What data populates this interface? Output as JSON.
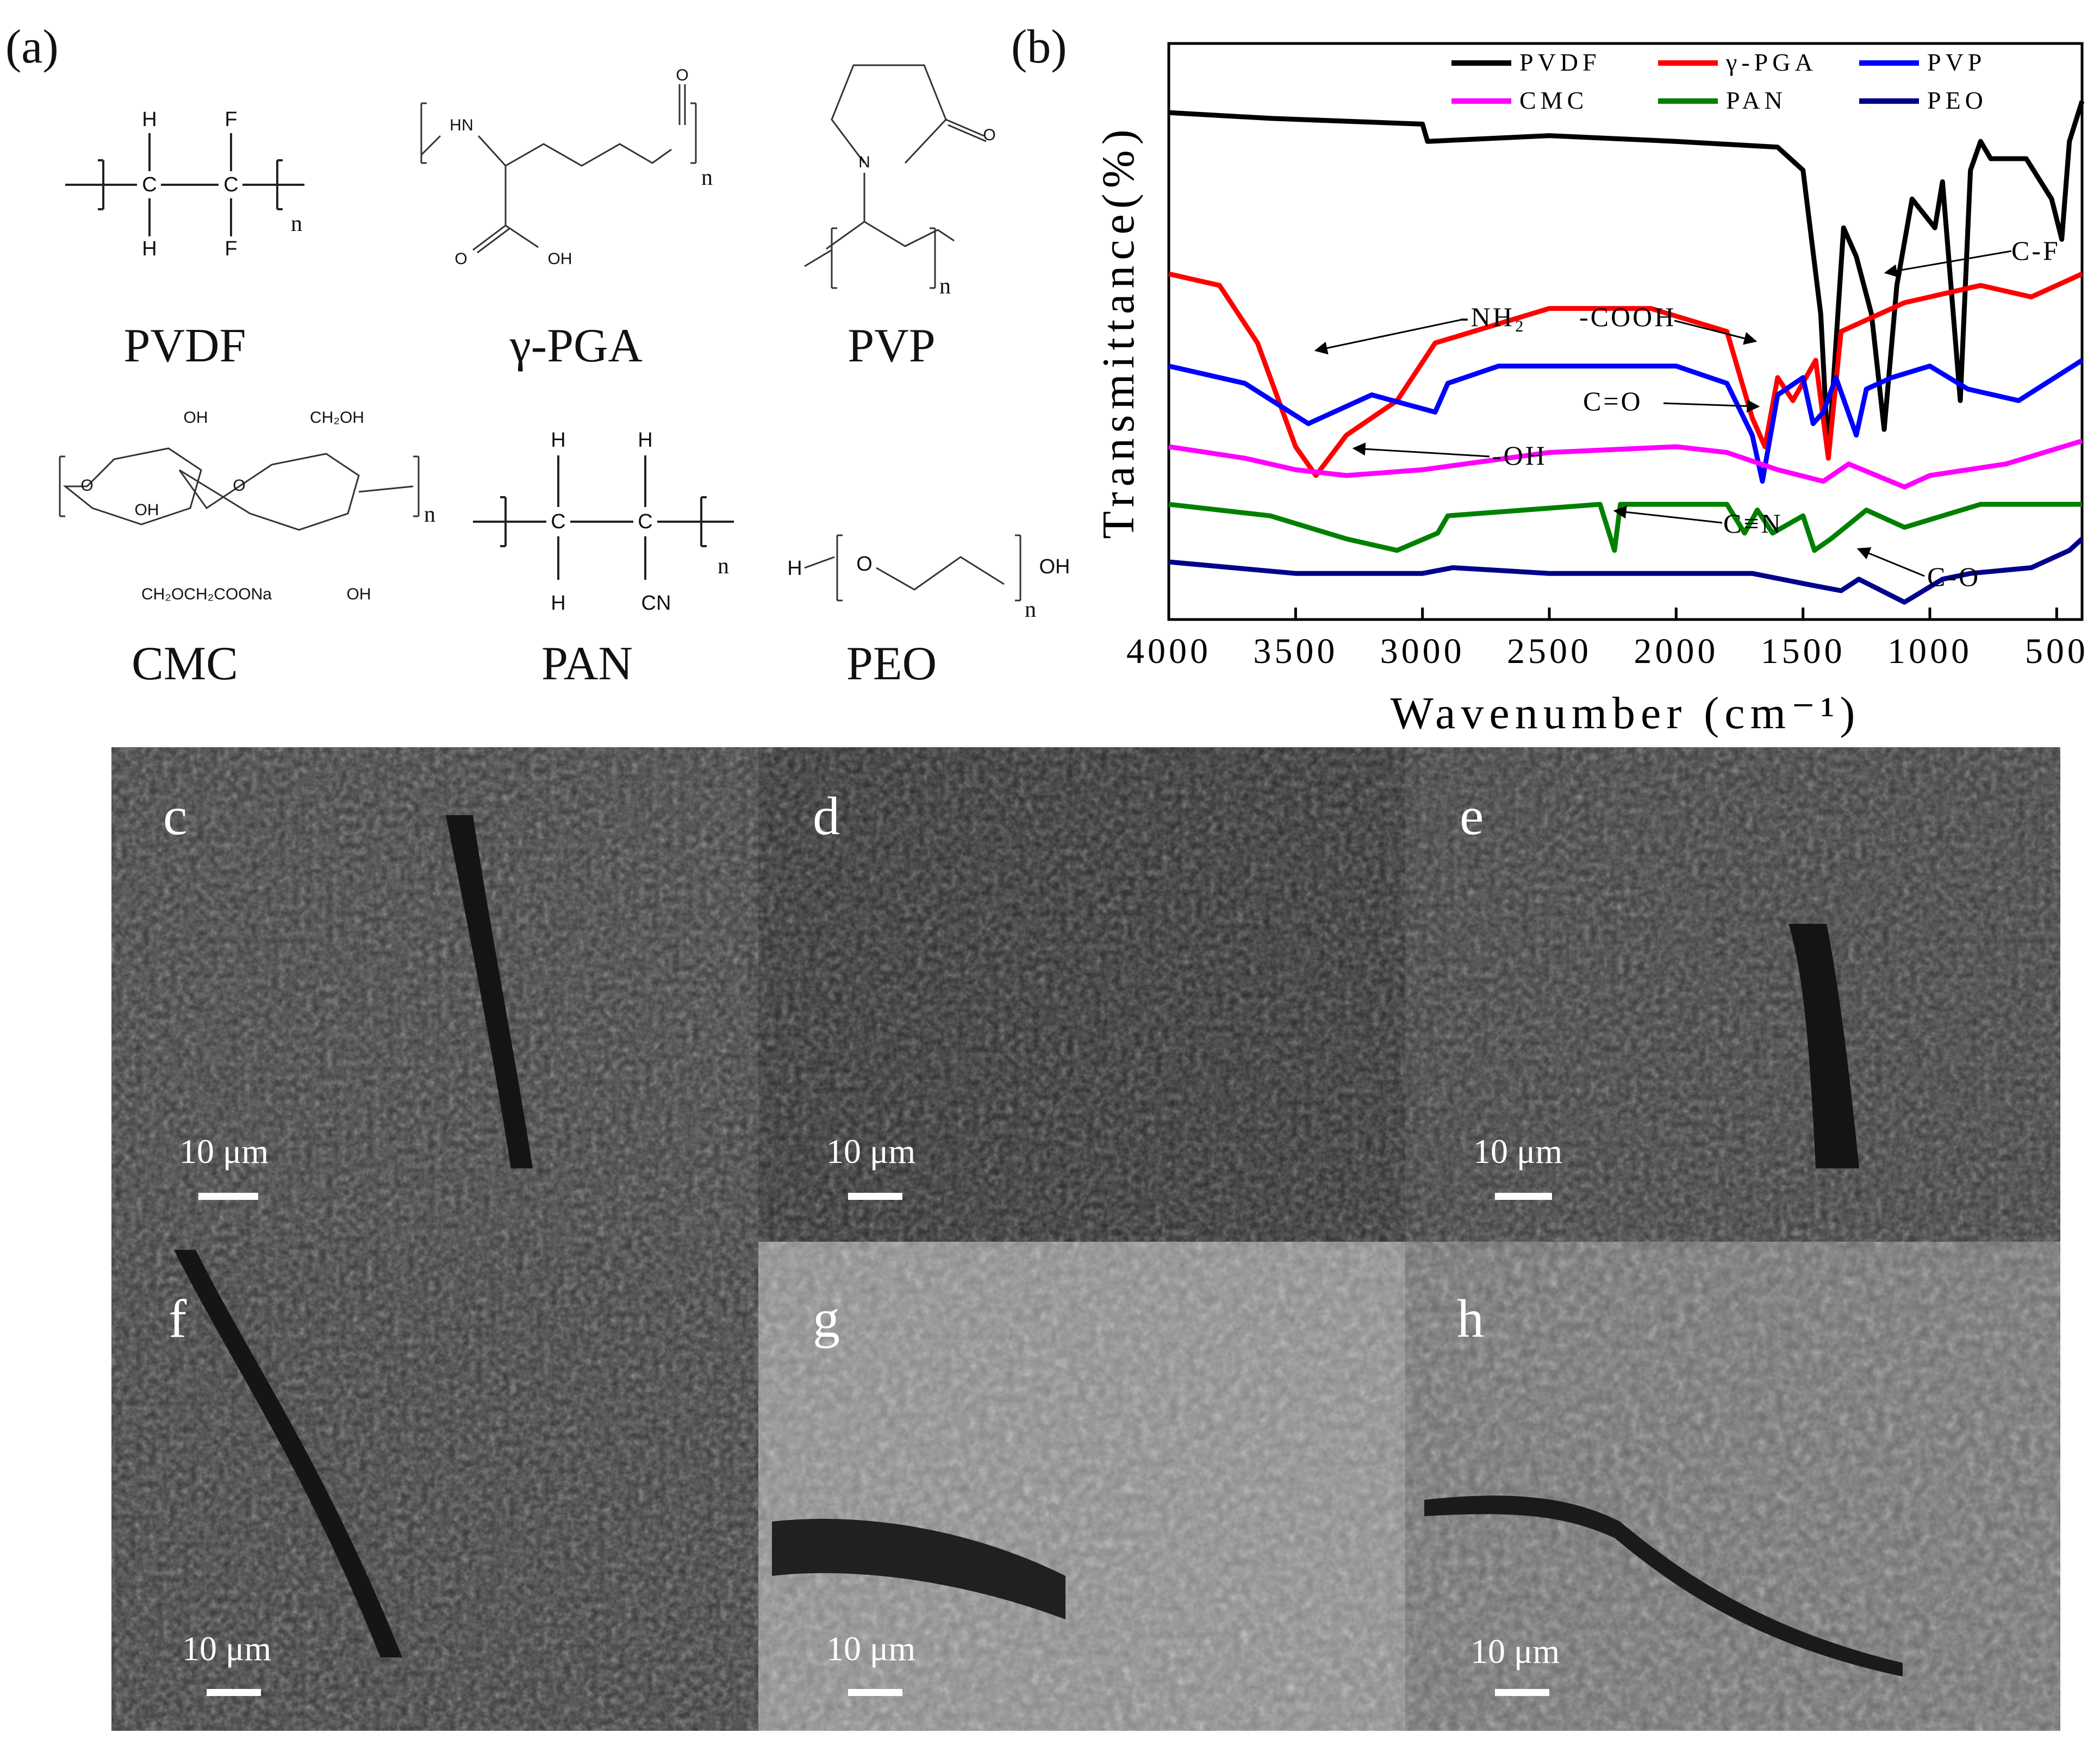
{
  "panel_labels": {
    "a": "(a)",
    "b": "(b)",
    "c": "c",
    "d": "d",
    "e": "e",
    "f": "f",
    "g": "g",
    "h": "h"
  },
  "structures": [
    {
      "id": "pvdf",
      "name": "PVDF"
    },
    {
      "id": "pga",
      "name": "γ-PGA"
    },
    {
      "id": "pvp",
      "name": "PVP"
    },
    {
      "id": "cmc",
      "name": "CMC"
    },
    {
      "id": "pan",
      "name": "PAN"
    },
    {
      "id": "peo",
      "name": "PEO"
    }
  ],
  "atoms": {
    "H": "H",
    "F": "F",
    "C": "C",
    "N": "N",
    "O": "O",
    "n": "n",
    "OH": "OH",
    "CN": "CN",
    "CH2OH": "CH₂OH",
    "cmc_side": "CH₂OCH₂COONa"
  },
  "chart_data": {
    "type": "line",
    "xlabel": "Wavenumber (cm⁻¹)",
    "ylabel": "Transmittance(%)",
    "xlim": [
      4000,
      400
    ],
    "x_ticks": [
      "4000",
      "3500",
      "3000",
      "2500",
      "2000",
      "1500",
      "1000",
      "500"
    ],
    "legend": {
      "placement": "top",
      "entries": [
        "PVDF",
        "γ-PGA",
        "PVP",
        "CMC",
        "PAN",
        "PEO"
      ]
    },
    "series": [
      {
        "name": "PVDF",
        "color": "#000000",
        "offset": 0.88,
        "points": [
          [
            4000,
            0.0
          ],
          [
            3600,
            -0.01
          ],
          [
            3000,
            -0.02
          ],
          [
            2980,
            -0.05
          ],
          [
            2500,
            -0.04
          ],
          [
            2000,
            -0.05
          ],
          [
            1600,
            -0.06
          ],
          [
            1500,
            -0.1
          ],
          [
            1430,
            -0.35
          ],
          [
            1400,
            -0.6
          ],
          [
            1340,
            -0.2
          ],
          [
            1290,
            -0.25
          ],
          [
            1230,
            -0.35
          ],
          [
            1180,
            -0.55
          ],
          [
            1130,
            -0.3
          ],
          [
            1070,
            -0.15
          ],
          [
            980,
            -0.2
          ],
          [
            950,
            -0.12
          ],
          [
            880,
            -0.5
          ],
          [
            840,
            -0.1
          ],
          [
            800,
            -0.05
          ],
          [
            760,
            -0.08
          ],
          [
            620,
            -0.08
          ],
          [
            520,
            -0.15
          ],
          [
            480,
            -0.22
          ],
          [
            450,
            -0.05
          ],
          [
            400,
            0.02
          ]
        ]
      },
      {
        "name": "γ-PGA",
        "color": "#ff0000",
        "offset": 0.6,
        "points": [
          [
            4000,
            0.0
          ],
          [
            3800,
            -0.02
          ],
          [
            3650,
            -0.12
          ],
          [
            3500,
            -0.3
          ],
          [
            3420,
            -0.35
          ],
          [
            3300,
            -0.28
          ],
          [
            3100,
            -0.22
          ],
          [
            2950,
            -0.12
          ],
          [
            2500,
            -0.06
          ],
          [
            2100,
            -0.06
          ],
          [
            1800,
            -0.1
          ],
          [
            1700,
            -0.25
          ],
          [
            1650,
            -0.3
          ],
          [
            1600,
            -0.18
          ],
          [
            1540,
            -0.22
          ],
          [
            1450,
            -0.15
          ],
          [
            1400,
            -0.32
          ],
          [
            1350,
            -0.1
          ],
          [
            1250,
            -0.08
          ],
          [
            1100,
            -0.05
          ],
          [
            800,
            -0.02
          ],
          [
            600,
            -0.04
          ],
          [
            400,
            0.0
          ]
        ]
      },
      {
        "name": "PVP",
        "color": "#0000ff",
        "offset": 0.44,
        "points": [
          [
            4000,
            0.0
          ],
          [
            3700,
            -0.03
          ],
          [
            3450,
            -0.1
          ],
          [
            3200,
            -0.05
          ],
          [
            2950,
            -0.08
          ],
          [
            2900,
            -0.03
          ],
          [
            2700,
            0.0
          ],
          [
            2500,
            0.0
          ],
          [
            2000,
            0.0
          ],
          [
            1800,
            -0.03
          ],
          [
            1700,
            -0.12
          ],
          [
            1660,
            -0.2
          ],
          [
            1600,
            -0.05
          ],
          [
            1500,
            -0.02
          ],
          [
            1460,
            -0.1
          ],
          [
            1420,
            -0.08
          ],
          [
            1370,
            -0.02
          ],
          [
            1290,
            -0.12
          ],
          [
            1250,
            -0.04
          ],
          [
            1150,
            -0.02
          ],
          [
            1000,
            -0.0
          ],
          [
            850,
            -0.04
          ],
          [
            650,
            -0.06
          ],
          [
            400,
            0.01
          ]
        ]
      },
      {
        "name": "CMC",
        "color": "#ff00ff",
        "offset": 0.3,
        "points": [
          [
            4000,
            0.0
          ],
          [
            3700,
            -0.02
          ],
          [
            3500,
            -0.04
          ],
          [
            3300,
            -0.05
          ],
          [
            3000,
            -0.04
          ],
          [
            2500,
            -0.01
          ],
          [
            2000,
            -0.0
          ],
          [
            1800,
            -0.01
          ],
          [
            1600,
            -0.04
          ],
          [
            1420,
            -0.06
          ],
          [
            1320,
            -0.03
          ],
          [
            1100,
            -0.07
          ],
          [
            1000,
            -0.05
          ],
          [
            700,
            -0.03
          ],
          [
            400,
            0.01
          ]
        ]
      },
      {
        "name": "PAN",
        "color": "#008000",
        "offset": 0.2,
        "points": [
          [
            4000,
            0.0
          ],
          [
            3600,
            -0.02
          ],
          [
            3300,
            -0.06
          ],
          [
            3100,
            -0.08
          ],
          [
            2940,
            -0.05
          ],
          [
            2900,
            -0.02
          ],
          [
            2300,
            -0.0
          ],
          [
            2243,
            -0.08
          ],
          [
            2220,
            -0.0
          ],
          [
            1800,
            0.0
          ],
          [
            1730,
            -0.05
          ],
          [
            1680,
            -0.01
          ],
          [
            1620,
            -0.05
          ],
          [
            1500,
            -0.02
          ],
          [
            1455,
            -0.08
          ],
          [
            1390,
            -0.06
          ],
          [
            1250,
            -0.01
          ],
          [
            1100,
            -0.04
          ],
          [
            800,
            -0.0
          ],
          [
            400,
            0.0
          ]
        ]
      },
      {
        "name": "PEO",
        "color": "#00008b",
        "offset": 0.1,
        "points": [
          [
            4000,
            0.0
          ],
          [
            3500,
            -0.02
          ],
          [
            3000,
            -0.02
          ],
          [
            2880,
            -0.01
          ],
          [
            2500,
            -0.02
          ],
          [
            2000,
            -0.02
          ],
          [
            1700,
            -0.02
          ],
          [
            1470,
            -0.04
          ],
          [
            1350,
            -0.05
          ],
          [
            1280,
            -0.03
          ],
          [
            1100,
            -0.07
          ],
          [
            950,
            -0.03
          ],
          [
            840,
            -0.02
          ],
          [
            600,
            -0.01
          ],
          [
            450,
            0.02
          ],
          [
            400,
            0.04
          ]
        ]
      }
    ],
    "annotations": [
      "C-F",
      "-NH₂",
      "-COOH",
      "C=O",
      "-OH",
      "C≡N",
      "C-O"
    ]
  },
  "sem": {
    "scale_text": "10 μm",
    "panels": [
      "c",
      "d",
      "e",
      "f",
      "g",
      "h"
    ]
  }
}
